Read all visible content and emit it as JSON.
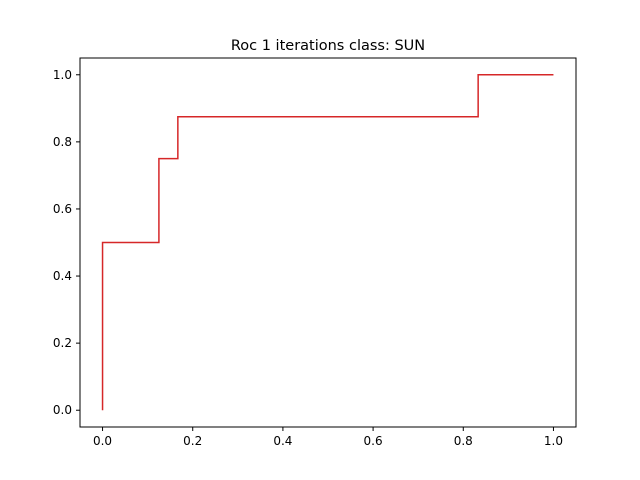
{
  "chart_data": {
    "type": "line",
    "title": "Roc 1 iterations class: SUN",
    "xlabel": "",
    "ylabel": "",
    "xlim": [
      -0.05,
      1.05
    ],
    "ylim": [
      -0.05,
      1.05
    ],
    "grid": false,
    "legend": "none",
    "x_ticks": [
      0.0,
      0.2,
      0.4,
      0.6,
      0.8,
      1.0
    ],
    "y_ticks": [
      0.0,
      0.2,
      0.4,
      0.6,
      0.8,
      1.0
    ],
    "x_tick_labels": [
      "0.0",
      "0.2",
      "0.4",
      "0.6",
      "0.8",
      "1.0"
    ],
    "y_tick_labels": [
      "0.0",
      "0.2",
      "0.4",
      "0.6",
      "0.8",
      "1.0"
    ],
    "series": [
      {
        "color": "#d62728",
        "x": [
          0.0,
          0.0,
          0.125,
          0.125,
          0.167,
          0.167,
          0.833,
          0.833,
          1.0
        ],
        "y": [
          0.0,
          0.5,
          0.5,
          0.75,
          0.75,
          0.875,
          0.875,
          1.0,
          1.0
        ]
      }
    ]
  }
}
